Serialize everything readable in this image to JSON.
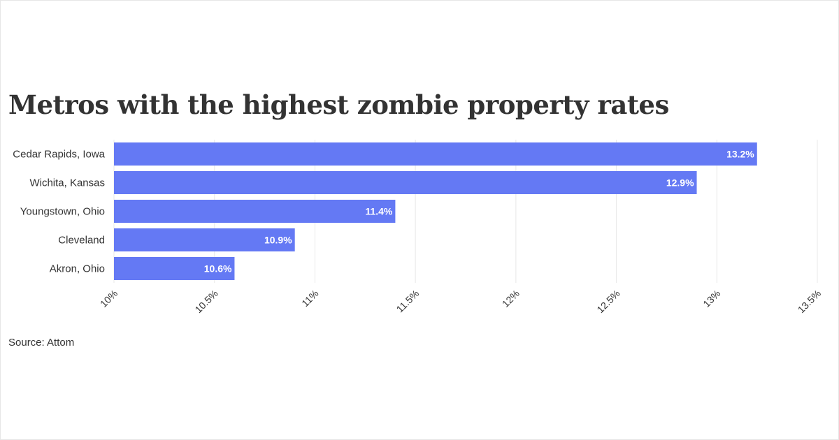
{
  "title": "Metros with the highest zombie property rates",
  "source": "Source: Attom",
  "colors": {
    "bar": "#6479f4",
    "grid": "#e8e8e8",
    "text": "#333333",
    "label": "#ffffff"
  },
  "chart_data": {
    "type": "bar",
    "orientation": "horizontal",
    "categories": [
      "Cedar Rapids, Iowa",
      "Wichita, Kansas",
      "Youngstown, Ohio",
      "Cleveland",
      "Akron, Ohio"
    ],
    "values": [
      13.2,
      12.9,
      11.4,
      10.9,
      10.6
    ],
    "data_labels": [
      "13.2%",
      "12.9%",
      "11.4%",
      "10.9%",
      "10.6%"
    ],
    "xlim": [
      10,
      13.5
    ],
    "x_ticks": [
      10,
      10.5,
      11,
      11.5,
      12,
      12.5,
      13,
      13.5
    ],
    "x_tick_labels": [
      "10%",
      "10.5%",
      "11%",
      "11.5%",
      "12%",
      "12.5%",
      "13%",
      "13.5%"
    ],
    "grid": true,
    "legend": false
  }
}
